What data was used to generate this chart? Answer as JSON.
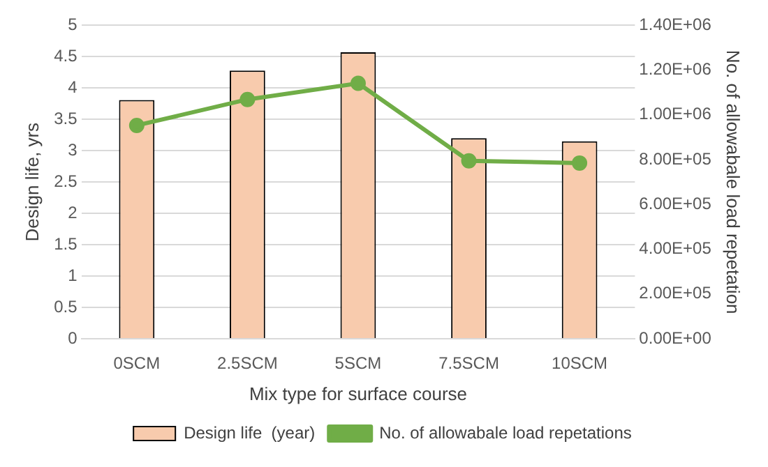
{
  "chart_data": {
    "type": "bar",
    "xlabel": "Mix type for surface course",
    "ylabel": "Design life, yrs",
    "y2label": "No. of allowabale load repetation",
    "categories": [
      "0SCM",
      "2.5SCM",
      "5SCM",
      "7.5SCM",
      "10SCM"
    ],
    "series": [
      {
        "name": "Design life  (year)",
        "color": "#f8cbad",
        "values": [
          3.81,
          4.28,
          4.57,
          3.2,
          3.15
        ]
      },
      {
        "name": "No. of allowabale load repetations",
        "type": "line",
        "axis": "y2",
        "color": "#70ad47",
        "values": [
          953000,
          1069000,
          1141000,
          795000,
          785000
        ]
      }
    ],
    "ylim": [
      0,
      5
    ],
    "yticks": [
      0,
      0.5,
      1,
      1.5,
      2,
      2.5,
      3,
      3.5,
      4,
      4.5,
      5
    ],
    "y2lim": [
      0,
      1400000
    ],
    "y2ticks": [
      {
        "value": 0,
        "label": "0.00E+00"
      },
      {
        "value": 200000,
        "label": "2.00E+05"
      },
      {
        "value": 400000,
        "label": "4.00E+05"
      },
      {
        "value": 600000,
        "label": "6.00E+05"
      },
      {
        "value": 800000,
        "label": "8.00E+05"
      },
      {
        "value": 1000000,
        "label": "1.00E+06"
      },
      {
        "value": 1200000,
        "label": "1.20E+06"
      },
      {
        "value": 1400000,
        "label": "1.40E+06"
      }
    ],
    "grid": "y",
    "legend": "bottom",
    "marker": "circle"
  }
}
